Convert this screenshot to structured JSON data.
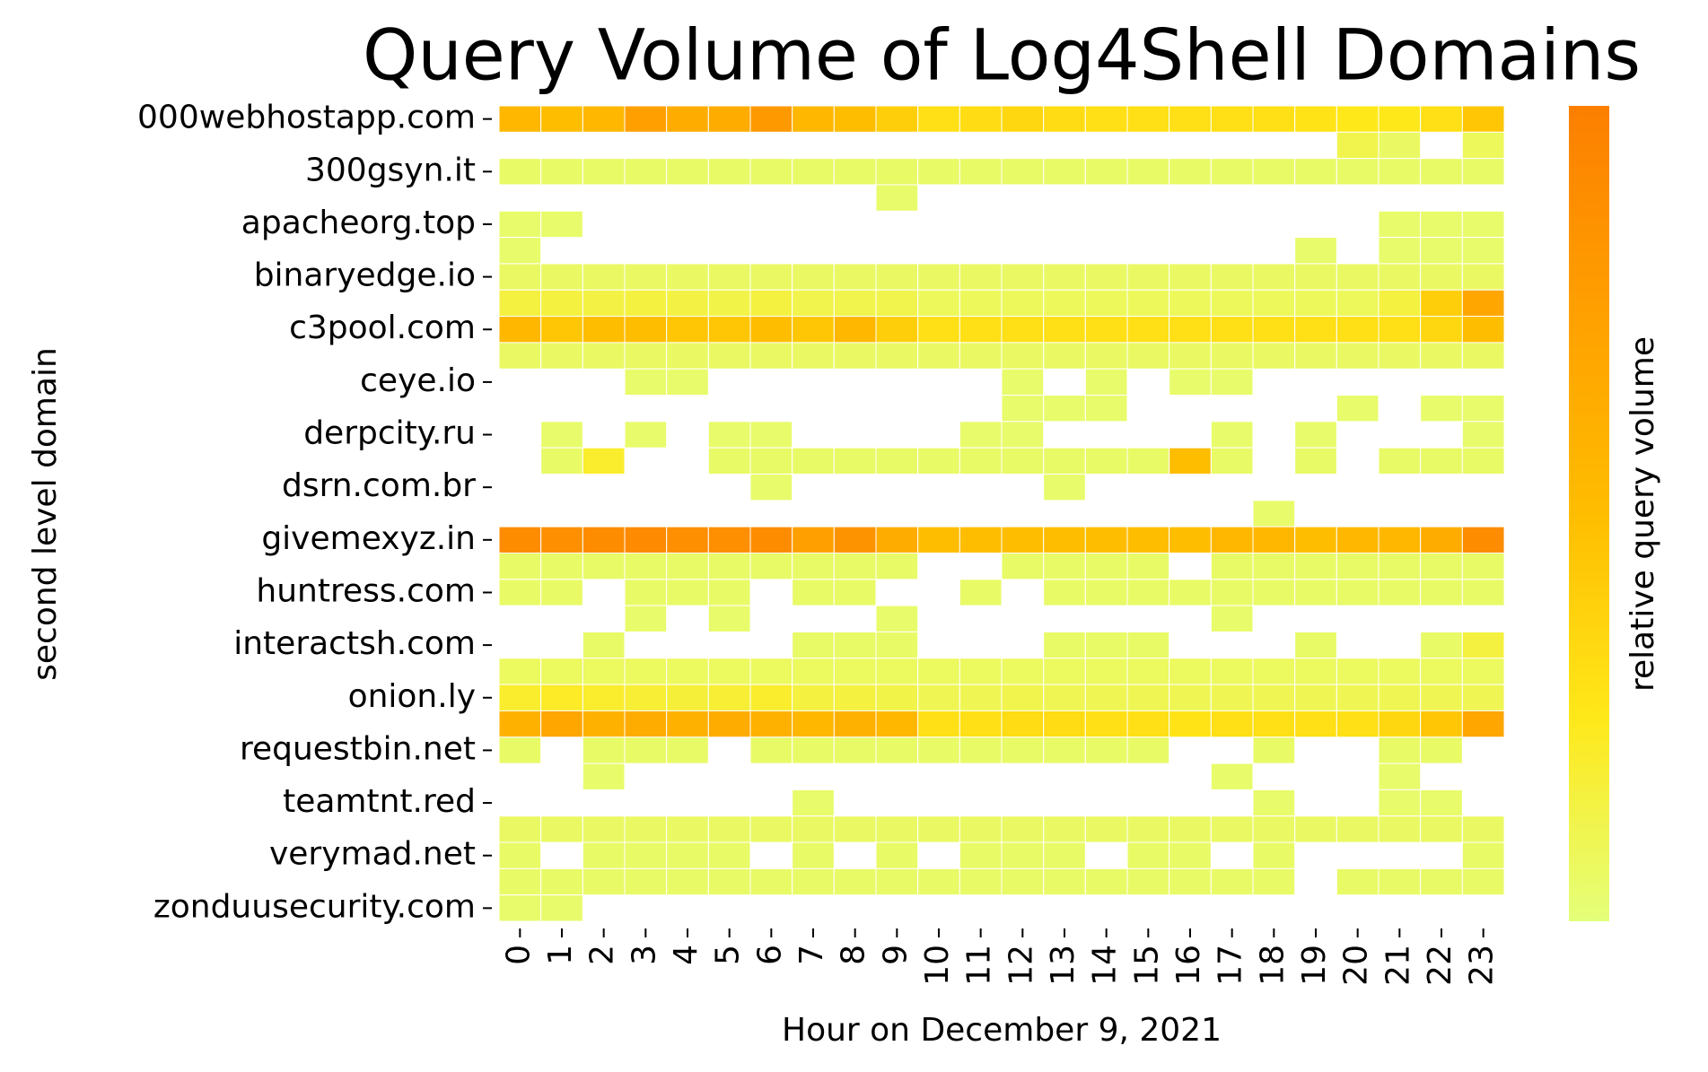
{
  "chart_data": {
    "type": "heatmap",
    "title": "Query Volume of Log4Shell Domains",
    "x_label": "Hour on December 9, 2021",
    "y_label": "second level domain",
    "colorbar_label": "relative query volume",
    "x_categories": [
      0,
      1,
      2,
      3,
      4,
      5,
      6,
      7,
      8,
      9,
      10,
      11,
      12,
      13,
      14,
      15,
      16,
      17,
      18,
      19,
      20,
      21,
      22,
      23
    ],
    "y_categories": [
      "000webhostapp.com",
      null,
      "300gsyn.it",
      null,
      "apacheorg.top",
      null,
      "binaryedge.io",
      null,
      "c3pool.com",
      null,
      "ceye.io",
      null,
      "derpcity.ru",
      null,
      "dsrn.com.br",
      null,
      "givemexyz.in",
      null,
      "huntress.com",
      null,
      "interactsh.com",
      null,
      "onion.ly",
      null,
      "requestbin.net",
      null,
      "teamtnt.red",
      null,
      "verymad.net",
      null,
      "zonduusecurity.com"
    ],
    "zlim": [
      0,
      1
    ],
    "colormap": [
      "#e4ff7a",
      "#ffe81a",
      "#ffbd00",
      "#ffa000",
      "#fc7f00"
    ],
    "z": [
      [
        0.55,
        0.5,
        0.55,
        0.75,
        0.65,
        0.65,
        0.8,
        0.55,
        0.5,
        0.4,
        0.3,
        0.32,
        0.35,
        0.32,
        0.3,
        0.3,
        0.3,
        0.3,
        0.3,
        0.28,
        0.25,
        0.25,
        0.3,
        0.45
      ],
      [
        null,
        null,
        null,
        null,
        null,
        null,
        null,
        null,
        null,
        null,
        null,
        null,
        null,
        null,
        null,
        null,
        null,
        null,
        null,
        null,
        0.12,
        0.06,
        null,
        0.08
      ],
      [
        0.05,
        0.05,
        0.05,
        0.05,
        0.05,
        0.05,
        0.05,
        0.05,
        0.05,
        0.05,
        0.05,
        0.05,
        0.05,
        0.05,
        0.05,
        0.05,
        0.05,
        0.05,
        0.05,
        0.05,
        0.05,
        0.05,
        0.05,
        0.05
      ],
      [
        null,
        null,
        null,
        null,
        null,
        null,
        null,
        null,
        null,
        0.04,
        null,
        null,
        null,
        null,
        null,
        null,
        null,
        null,
        null,
        null,
        null,
        null,
        null,
        null
      ],
      [
        0.04,
        0.04,
        null,
        null,
        null,
        null,
        null,
        null,
        null,
        null,
        null,
        null,
        null,
        null,
        null,
        null,
        null,
        null,
        null,
        null,
        null,
        0.04,
        0.04,
        0.04
      ],
      [
        0.04,
        null,
        null,
        null,
        null,
        null,
        null,
        null,
        null,
        null,
        null,
        null,
        null,
        null,
        null,
        null,
        null,
        null,
        null,
        0.04,
        null,
        0.04,
        0.04,
        0.04
      ],
      [
        0.06,
        0.06,
        0.06,
        0.06,
        0.06,
        0.06,
        0.06,
        0.06,
        0.06,
        0.06,
        0.06,
        0.06,
        0.06,
        0.06,
        0.06,
        0.06,
        0.06,
        0.06,
        0.06,
        0.06,
        0.06,
        0.06,
        0.06,
        0.06
      ],
      [
        0.15,
        0.15,
        0.14,
        0.15,
        0.14,
        0.13,
        0.15,
        0.12,
        0.12,
        0.12,
        0.08,
        0.08,
        0.08,
        0.08,
        0.08,
        0.08,
        0.08,
        0.08,
        0.08,
        0.08,
        0.08,
        0.15,
        0.4,
        0.7
      ],
      [
        0.55,
        0.45,
        0.5,
        0.5,
        0.45,
        0.45,
        0.5,
        0.45,
        0.55,
        0.4,
        0.3,
        0.3,
        0.3,
        0.3,
        0.3,
        0.3,
        0.3,
        0.3,
        0.3,
        0.3,
        0.3,
        0.3,
        0.35,
        0.5
      ],
      [
        0.06,
        0.06,
        0.06,
        0.06,
        0.06,
        0.06,
        0.06,
        0.06,
        0.06,
        0.06,
        0.06,
        0.06,
        0.06,
        0.06,
        0.06,
        0.06,
        0.06,
        0.06,
        0.06,
        0.06,
        0.06,
        0.06,
        0.06,
        0.06
      ],
      [
        null,
        null,
        null,
        0.04,
        0.04,
        null,
        null,
        null,
        null,
        null,
        null,
        null,
        0.04,
        null,
        0.04,
        null,
        0.04,
        0.04,
        null,
        null,
        null,
        null,
        null,
        null
      ],
      [
        null,
        null,
        null,
        null,
        null,
        null,
        null,
        null,
        null,
        null,
        null,
        null,
        0.04,
        0.04,
        0.04,
        null,
        null,
        null,
        null,
        null,
        0.04,
        null,
        0.04,
        0.04
      ],
      [
        null,
        0.04,
        null,
        0.04,
        null,
        0.04,
        0.04,
        null,
        null,
        null,
        null,
        0.04,
        0.04,
        null,
        null,
        null,
        null,
        0.04,
        null,
        0.04,
        null,
        null,
        null,
        0.04
      ],
      [
        null,
        0.05,
        0.2,
        null,
        null,
        0.05,
        0.05,
        0.05,
        0.05,
        0.05,
        0.05,
        0.05,
        0.05,
        0.05,
        0.05,
        0.05,
        0.5,
        0.05,
        null,
        0.05,
        null,
        0.05,
        0.05,
        0.05
      ],
      [
        null,
        null,
        null,
        null,
        null,
        null,
        0.04,
        null,
        null,
        null,
        null,
        null,
        null,
        0.04,
        null,
        null,
        null,
        null,
        null,
        null,
        null,
        null,
        null,
        null
      ],
      [
        null,
        null,
        null,
        null,
        null,
        null,
        null,
        null,
        null,
        null,
        null,
        null,
        null,
        null,
        null,
        null,
        null,
        null,
        0.04,
        null,
        null,
        null,
        null,
        null
      ],
      [
        0.9,
        0.88,
        0.9,
        0.92,
        0.88,
        0.88,
        0.9,
        0.75,
        0.85,
        0.65,
        0.5,
        0.5,
        0.5,
        0.5,
        0.5,
        0.5,
        0.5,
        0.55,
        0.55,
        0.5,
        0.55,
        0.55,
        0.65,
        0.9
      ],
      [
        0.05,
        0.05,
        0.05,
        0.05,
        0.05,
        0.05,
        0.05,
        0.05,
        0.05,
        0.05,
        null,
        null,
        0.05,
        0.05,
        0.05,
        0.05,
        null,
        0.05,
        0.05,
        0.05,
        0.05,
        0.05,
        0.05,
        0.05
      ],
      [
        0.05,
        0.05,
        null,
        0.05,
        0.05,
        0.05,
        null,
        0.05,
        0.05,
        null,
        null,
        0.05,
        null,
        0.05,
        0.05,
        0.05,
        0.05,
        0.05,
        0.05,
        0.05,
        0.05,
        0.05,
        0.05,
        0.05
      ],
      [
        null,
        null,
        null,
        0.04,
        null,
        0.04,
        null,
        null,
        null,
        0.04,
        null,
        null,
        null,
        null,
        null,
        null,
        null,
        0.04,
        null,
        null,
        null,
        null,
        null,
        null
      ],
      [
        null,
        null,
        0.05,
        null,
        null,
        null,
        null,
        0.05,
        0.05,
        0.05,
        null,
        null,
        null,
        0.05,
        0.05,
        0.05,
        null,
        null,
        null,
        0.05,
        null,
        null,
        0.05,
        0.15
      ],
      [
        0.07,
        0.07,
        0.07,
        0.07,
        0.07,
        0.07,
        0.07,
        0.07,
        0.07,
        0.07,
        0.07,
        0.07,
        0.07,
        0.07,
        0.07,
        0.07,
        0.07,
        0.07,
        0.07,
        0.07,
        0.07,
        0.07,
        0.07,
        0.07
      ],
      [
        0.2,
        0.22,
        0.2,
        0.18,
        0.17,
        0.18,
        0.2,
        0.15,
        0.15,
        0.13,
        0.1,
        0.1,
        0.12,
        0.1,
        0.1,
        0.1,
        0.1,
        0.1,
        0.1,
        0.1,
        0.1,
        0.1,
        0.1,
        0.1
      ],
      [
        0.6,
        0.7,
        0.6,
        0.65,
        0.6,
        0.65,
        0.6,
        0.55,
        0.6,
        0.55,
        0.3,
        0.3,
        0.32,
        0.32,
        0.3,
        0.3,
        0.28,
        0.3,
        0.3,
        0.3,
        0.3,
        0.35,
        0.45,
        0.7
      ],
      [
        0.05,
        null,
        0.05,
        0.05,
        0.05,
        null,
        0.05,
        0.05,
        0.05,
        0.05,
        0.05,
        0.05,
        0.05,
        0.05,
        0.05,
        0.05,
        null,
        null,
        0.05,
        null,
        null,
        0.05,
        0.05,
        null
      ],
      [
        null,
        null,
        0.04,
        null,
        null,
        null,
        null,
        null,
        null,
        null,
        null,
        null,
        null,
        null,
        null,
        null,
        null,
        0.04,
        null,
        null,
        null,
        0.04,
        null,
        null
      ],
      [
        null,
        null,
        null,
        null,
        null,
        null,
        null,
        0.04,
        null,
        null,
        null,
        null,
        null,
        null,
        null,
        null,
        null,
        null,
        0.04,
        null,
        null,
        0.04,
        0.04,
        null
      ],
      [
        0.06,
        0.06,
        0.06,
        0.06,
        0.06,
        0.06,
        0.06,
        0.06,
        0.06,
        0.06,
        0.06,
        0.06,
        0.06,
        0.06,
        0.06,
        0.06,
        0.06,
        0.06,
        0.06,
        0.06,
        0.06,
        0.06,
        0.06,
        0.06
      ],
      [
        0.05,
        null,
        0.05,
        0.05,
        0.05,
        0.05,
        null,
        0.05,
        null,
        0.05,
        null,
        0.05,
        0.05,
        0.05,
        null,
        0.05,
        0.05,
        null,
        0.05,
        null,
        null,
        null,
        null,
        0.05
      ],
      [
        0.05,
        0.05,
        0.05,
        0.05,
        0.05,
        0.05,
        0.05,
        0.05,
        0.05,
        0.05,
        0.05,
        0.05,
        0.05,
        0.05,
        0.05,
        0.05,
        0.05,
        0.05,
        0.05,
        null,
        0.05,
        0.05,
        0.05,
        0.05
      ],
      [
        0.04,
        0.04,
        null,
        null,
        null,
        null,
        null,
        null,
        null,
        null,
        null,
        null,
        null,
        null,
        null,
        null,
        null,
        null,
        null,
        null,
        null,
        null,
        null,
        null
      ]
    ]
  }
}
